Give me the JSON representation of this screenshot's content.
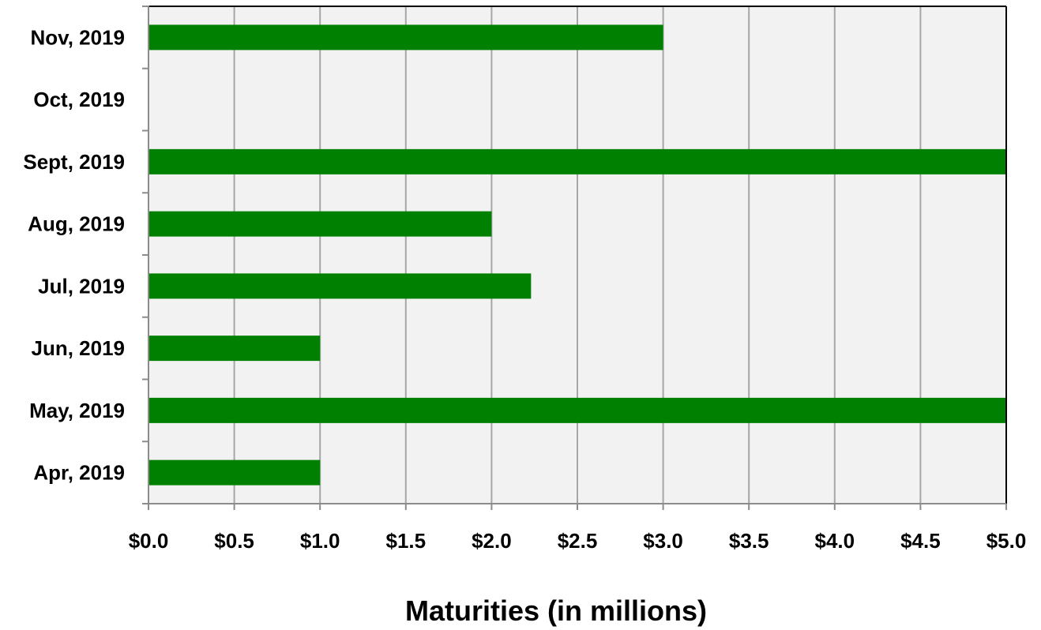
{
  "chart_data": {
    "type": "bar",
    "orientation": "horizontal",
    "categories": [
      "Apr, 2019",
      "May, 2019",
      "Jun, 2019",
      "Jul, 2019",
      "Aug, 2019",
      "Sept, 2019",
      "Oct, 2019",
      "Nov, 2019"
    ],
    "values": [
      1.0,
      5.0,
      1.0,
      2.23,
      2.0,
      5.0,
      0,
      3.0
    ],
    "xlabel": "Maturities (in millions)",
    "ylabel": "",
    "xlim": [
      0,
      5
    ],
    "x_ticks": [
      "$0.0",
      "$0.5",
      "$1.0",
      "$1.5",
      "$2.0",
      "$2.5",
      "$3.0",
      "$3.5",
      "$4.0",
      "$4.5",
      "$5.0"
    ],
    "grid": true,
    "bar_color": "#008000",
    "plot_background": "#f2f2f2",
    "gridline_color": "#a6a6a6"
  }
}
